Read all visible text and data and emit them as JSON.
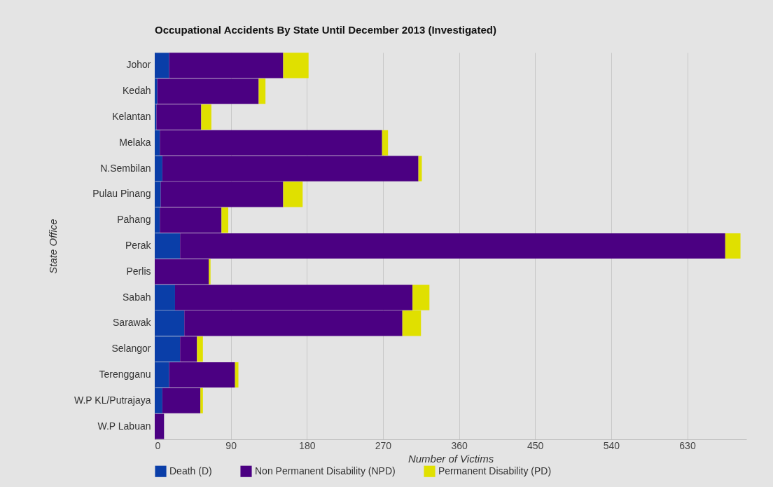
{
  "chart_data": {
    "type": "bar",
    "orientation": "horizontal",
    "stacked": true,
    "title": "Occupational Accidents By State Until December 2013 (Investigated)",
    "xlabel": "Number of Victims",
    "ylabel": "State Office",
    "categories": [
      "Johor",
      "Kedah",
      "Kelantan",
      "Melaka",
      "N.Sembilan",
      "Pulau Pinang",
      "Pahang",
      "Perak",
      "Perlis",
      "Sabah",
      "Sarawak",
      "Selangor",
      "Terengganu",
      "W.P KL/Putrajaya",
      "W.P Labuan"
    ],
    "series": [
      {
        "name": "Death (D)",
        "color": "#0a3ea8",
        "values": [
          17,
          3,
          2,
          6,
          9,
          7,
          6,
          30,
          0,
          24,
          35,
          30,
          17,
          9,
          0
        ]
      },
      {
        "name": "Non Permanent Disability (NPD)",
        "color": "#4b0082",
        "values": [
          135,
          120,
          53,
          263,
          303,
          145,
          73,
          645,
          64,
          281,
          258,
          20,
          78,
          45,
          11
        ]
      },
      {
        "name": "Permanent Disability (PD)",
        "color": "#e0e000",
        "values": [
          30,
          8,
          12,
          7,
          4,
          23,
          8,
          18,
          2,
          20,
          22,
          7,
          4,
          3,
          0
        ]
      }
    ],
    "xlim": [
      0,
      700
    ],
    "xticks": [
      0,
      90,
      180,
      270,
      360,
      450,
      540,
      630
    ],
    "grid": "x",
    "legend": "bottom"
  }
}
